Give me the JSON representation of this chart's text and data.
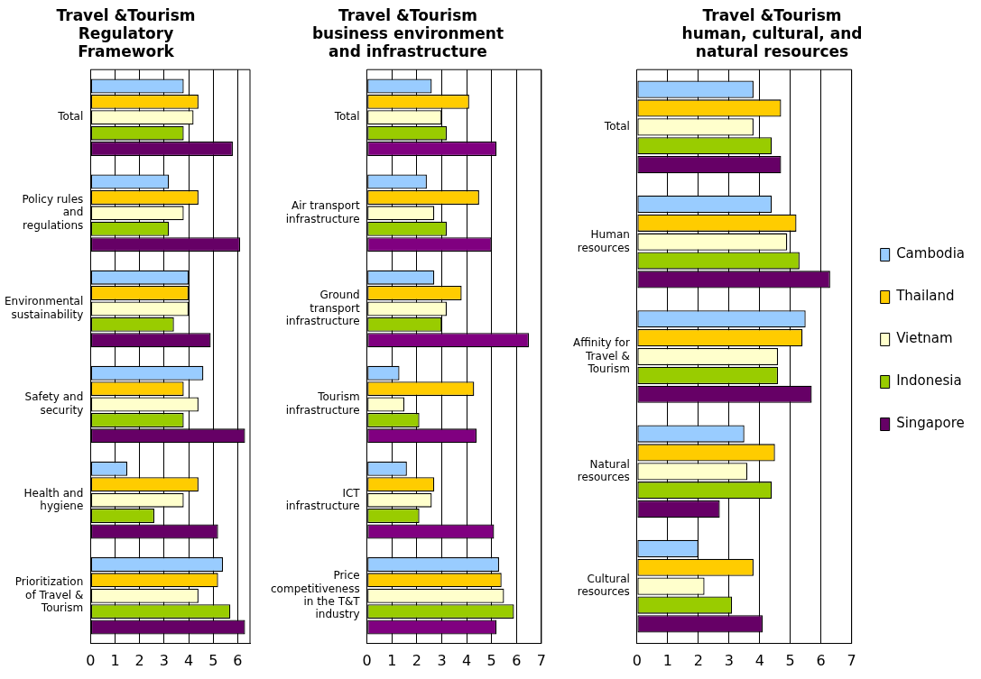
{
  "chart_data": [
    {
      "type": "bar",
      "orientation": "horizontal",
      "title": "Travel &Tourism Regulatory Framework",
      "categories": [
        "Total",
        "Policy rules and regulations",
        "Environmental sustainability",
        "Safety and security",
        "Health and hygiene",
        "Prioritization of Travel & Tourism"
      ],
      "xlim": [
        0,
        6.5
      ],
      "xticks": [
        0,
        1,
        2,
        3,
        4,
        5,
        6
      ],
      "grid": "x",
      "legend": false,
      "series": [
        {
          "color": "#99ccff",
          "values": [
            3.8,
            3.2,
            4.0,
            4.6,
            1.5,
            5.4
          ]
        },
        {
          "color": "#ffcc00",
          "values": [
            4.4,
            4.4,
            4.0,
            3.8,
            4.4,
            5.2
          ]
        },
        {
          "color": "#ffffcc",
          "values": [
            4.2,
            3.8,
            4.0,
            4.4,
            3.8,
            4.4
          ]
        },
        {
          "color": "#99cc00",
          "values": [
            3.8,
            3.2,
            3.4,
            3.8,
            2.6,
            5.7
          ]
        },
        {
          "color": "#660066",
          "values": [
            5.8,
            6.1,
            4.9,
            6.3,
            5.2,
            6.3
          ]
        }
      ]
    },
    {
      "type": "bar",
      "orientation": "horizontal",
      "title": "Travel &Tourism business environment and infrastructure",
      "categories": [
        "Total",
        "Air transport infrastructure",
        "Ground transport infrastructure",
        "Tourism infrastructure",
        "ICT infrastructure",
        "Price competitiveness in the T&T industry"
      ],
      "xlim": [
        0,
        7
      ],
      "xticks": [
        0,
        1,
        2,
        3,
        4,
        5,
        6,
        7
      ],
      "grid": "x",
      "legend": false,
      "series": [
        {
          "color": "#99ccff",
          "values": [
            2.6,
            2.4,
            2.7,
            1.3,
            1.6,
            5.3
          ]
        },
        {
          "color": "#ffcc00",
          "values": [
            4.1,
            4.5,
            3.8,
            4.3,
            2.7,
            5.4
          ]
        },
        {
          "color": "#ffffcc",
          "values": [
            3.0,
            2.7,
            3.2,
            1.5,
            2.6,
            5.5
          ]
        },
        {
          "color": "#99cc00",
          "values": [
            3.2,
            3.2,
            3.0,
            2.1,
            2.1,
            5.9
          ]
        },
        {
          "color": "#800080",
          "values": [
            5.2,
            5.0,
            6.5,
            4.4,
            5.1,
            5.2
          ]
        }
      ]
    },
    {
      "type": "bar",
      "orientation": "horizontal",
      "title": "Travel &Tourism human, cultural, and natural resources",
      "categories": [
        "Total",
        "Human resources",
        "Affinity for Travel & Tourism",
        "Natural resources",
        "Cultural resources"
      ],
      "xlim": [
        0,
        7
      ],
      "xticks": [
        0,
        1,
        2,
        3,
        4,
        5,
        6,
        7
      ],
      "grid": "x",
      "legend": "right",
      "series": [
        {
          "name": "Cambodia",
          "color": "#99ccff",
          "values": [
            3.8,
            4.4,
            5.5,
            3.5,
            2.0
          ]
        },
        {
          "name": "Thailand",
          "color": "#ffcc00",
          "values": [
            4.7,
            5.2,
            5.4,
            4.5,
            3.8
          ]
        },
        {
          "name": "Vietnam",
          "color": "#ffffcc",
          "values": [
            3.8,
            4.9,
            4.6,
            3.6,
            2.2
          ]
        },
        {
          "name": "Indonesia",
          "color": "#99cc00",
          "values": [
            4.4,
            5.3,
            4.6,
            4.4,
            3.1
          ]
        },
        {
          "name": "Singapore",
          "color": "#660066",
          "values": [
            4.7,
            6.3,
            5.7,
            2.7,
            4.1
          ]
        }
      ]
    }
  ]
}
